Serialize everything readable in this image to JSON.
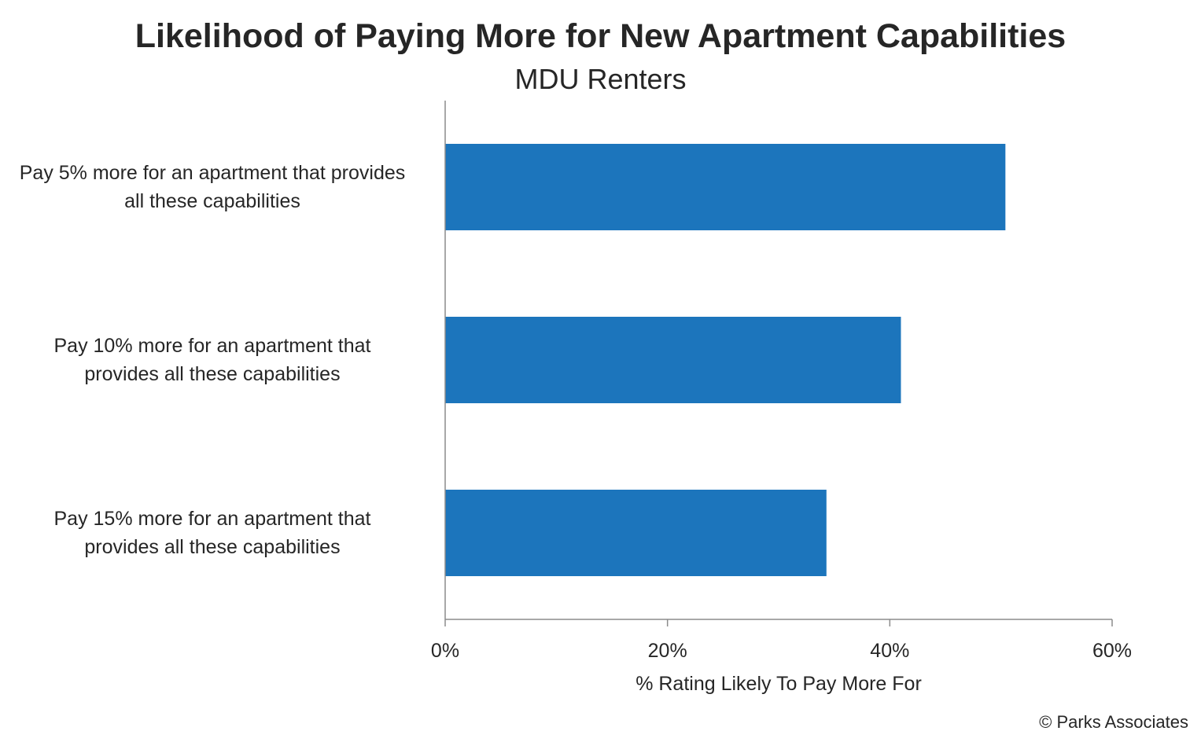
{
  "chart_data": {
    "type": "bar",
    "orientation": "horizontal",
    "title": "Likelihood of Paying More for New Apartment Capabilities",
    "subtitle": "MDU Renters",
    "categories": [
      "Pay 5% more for an apartment that provides\nall these capabilities",
      "Pay 10% more for an apartment that\nprovides all these capabilities",
      "Pay 15% more for an apartment that\nprovides all these capabilities"
    ],
    "values": [
      50.4,
      41.0,
      34.3
    ],
    "xlabel": "% Rating Likely To Pay More For",
    "xlim": [
      0,
      60
    ],
    "xticks": [
      0,
      20,
      40,
      60
    ],
    "xtick_labels": [
      "0%",
      "20%",
      "40%",
      "60%"
    ],
    "bar_color": "#1c75bc",
    "grid": false,
    "legend": "none"
  },
  "footer": {
    "copyright": "© Parks Associates"
  }
}
